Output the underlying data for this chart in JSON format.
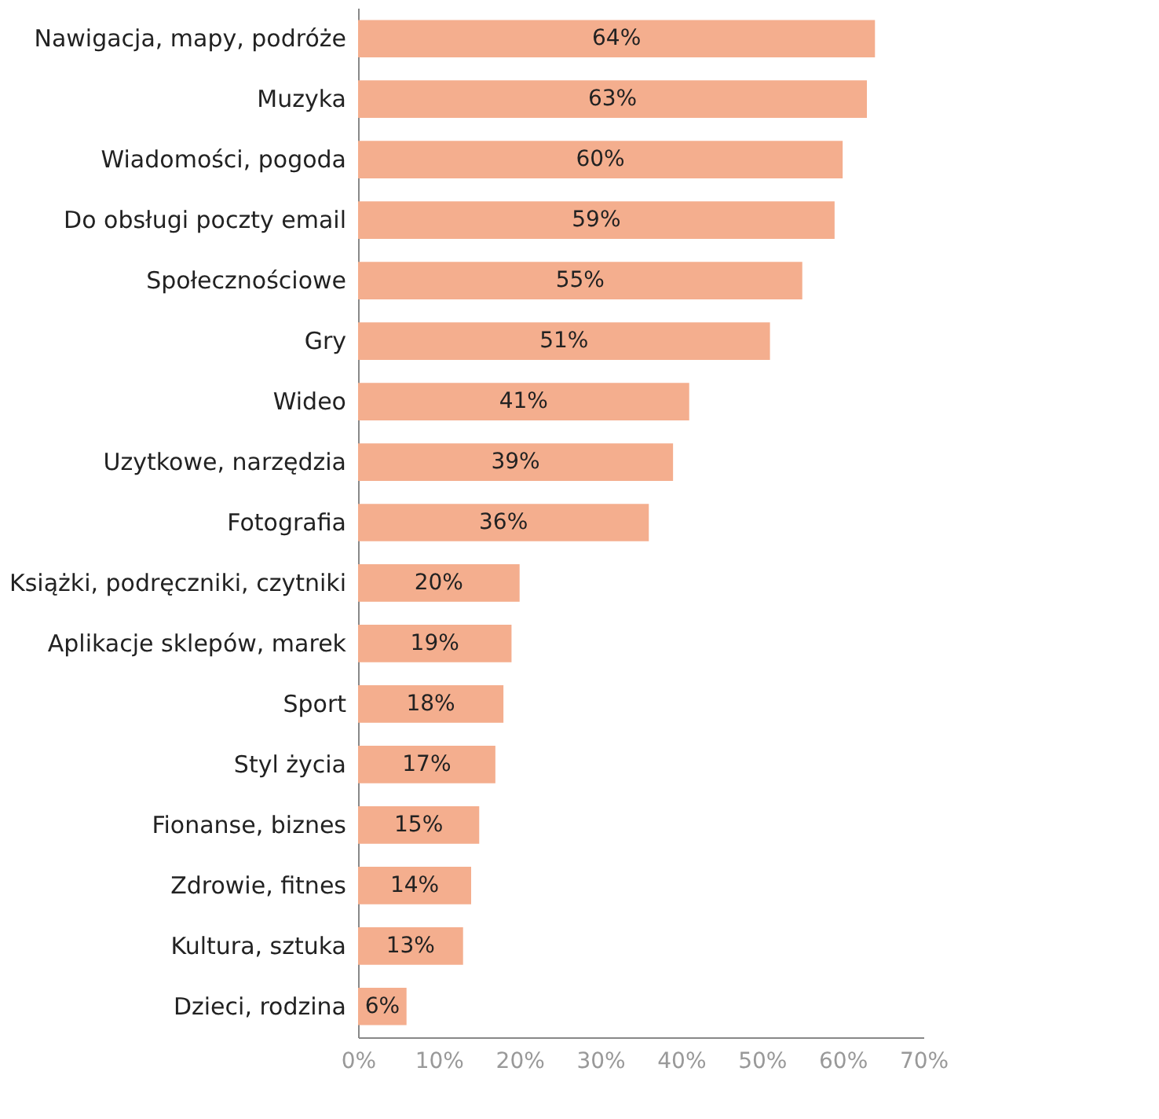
{
  "chart_data": {
    "type": "bar",
    "orientation": "horizontal",
    "categories": [
      "Nawigacja, mapy, podróże",
      "Muzyka",
      "Wiadomości, pogoda",
      "Do obsługi poczty email",
      "Społecznościowe",
      "Gry",
      "Wideo",
      "Uzytkowe, narzędzia",
      "Fotografia",
      "Książki, podręczniki, czytniki",
      "Aplikacje sklepów, marek",
      "Sport",
      "Styl życia",
      "Fionanse, biznes",
      "Zdrowie, fitnes",
      "Kultura, sztuka",
      "Dzieci, rodzina"
    ],
    "values": [
      64,
      63,
      60,
      59,
      55,
      51,
      41,
      39,
      36,
      20,
      19,
      18,
      17,
      15,
      14,
      13,
      6
    ],
    "value_labels": [
      "64%",
      "63%",
      "60%",
      "59%",
      "55%",
      "51%",
      "41%",
      "39%",
      "36%",
      "20%",
      "19%",
      "18%",
      "17%",
      "15%",
      "14%",
      "13%",
      "6%"
    ],
    "color": "#f4ae8e",
    "xlim": [
      0,
      70
    ],
    "xticks": [
      {
        "value": 0,
        "label": "0%"
      },
      {
        "value": 10,
        "label": "10%"
      },
      {
        "value": 20,
        "label": "20%"
      },
      {
        "value": 30,
        "label": "30%"
      },
      {
        "value": 40,
        "label": "40%"
      },
      {
        "value": 50,
        "label": "50%"
      },
      {
        "value": 60,
        "label": "60%"
      },
      {
        "value": 70,
        "label": "70%"
      }
    ],
    "grid": false
  }
}
